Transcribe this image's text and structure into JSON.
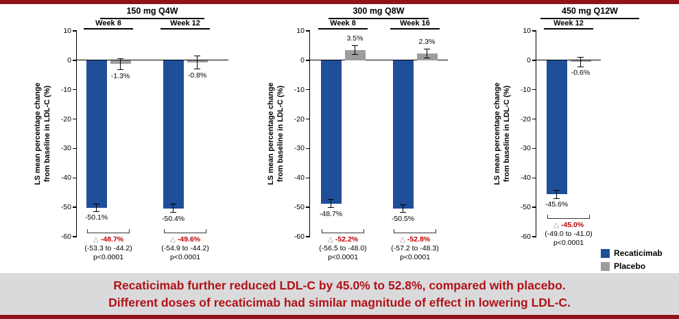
{
  "page": {
    "stripe_color": "#8E1418",
    "banner_bg": "#DADADC",
    "banner_text_color": "#B11217",
    "diff_text_color": "#C00000"
  },
  "banner": {
    "line1": "Recaticimab further reduced LDL-C by 45.0% to 52.8%, compared with placebo.",
    "line2": "Different doses of recaticimab had similar magnitude of effect in lowering LDL-C."
  },
  "legend": {
    "items": [
      {
        "label": "Recaticimab",
        "color": "#1F4E9B"
      },
      {
        "label": "Placebo",
        "color": "#9D9D9D"
      }
    ]
  },
  "chart_data": [
    {
      "type": "bar",
      "title": "150 mg Q4W",
      "ylabel": "LS mean percentage change from baseline in LDL-C (%)",
      "ylabel_lines": [
        "LS mean percentage change",
        "from baseline in LDL-C (%)"
      ],
      "ylim": [
        -60,
        10
      ],
      "yticks": [
        10,
        0,
        -10,
        -20,
        -30,
        -40,
        -50,
        -60
      ],
      "grid": false,
      "groups": [
        {
          "label": "Week 8",
          "bars": [
            {
              "series": "Recaticimab",
              "value": -50.1,
              "err": 1.3,
              "label": "-50.1%"
            },
            {
              "series": "Placebo",
              "value": -1.3,
              "err": 1.9,
              "label": "-1.3%"
            }
          ],
          "difference": {
            "delta": "△",
            "value": "-48.7%",
            "ci": "(-53.3 to -44.2)",
            "p": "p<0.0001"
          }
        },
        {
          "label": "Week 12",
          "bars": [
            {
              "series": "Recaticimab",
              "value": -50.4,
              "err": 1.4,
              "label": "-50.4%"
            },
            {
              "series": "Placebo",
              "value": -0.8,
              "err": 2.2,
              "label": "-0.8%"
            }
          ],
          "difference": {
            "delta": "△",
            "value": "-49.6%",
            "ci": "(-54.9 to -44.2)",
            "p": "p<0.0001"
          }
        }
      ]
    },
    {
      "type": "bar",
      "title": "300 mg Q8W",
      "ylabel": "LS mean percentage change from baseline in LDL-C (%)",
      "ylabel_lines": [
        "LS mean percentage change",
        "from baseline in LDL-C (%)"
      ],
      "ylim": [
        -60,
        10
      ],
      "yticks": [
        10,
        0,
        -10,
        -20,
        -30,
        -40,
        -50,
        -60
      ],
      "grid": false,
      "groups": [
        {
          "label": "Week 8",
          "bars": [
            {
              "series": "Recaticimab",
              "value": -48.7,
              "err": 1.4,
              "label": "-48.7%"
            },
            {
              "series": "Placebo",
              "value": 3.5,
              "err": 1.5,
              "label": "3.5%"
            }
          ],
          "difference": {
            "delta": "△",
            "value": "-52.2%",
            "ci": "(-56.5 to -48.0)",
            "p": "p<0.0001"
          }
        },
        {
          "label": "Week 16",
          "bars": [
            {
              "series": "Recaticimab",
              "value": -50.5,
              "err": 1.3,
              "label": "-50.5%"
            },
            {
              "series": "Placebo",
              "value": 2.3,
              "err": 1.6,
              "label": "2.3%"
            }
          ],
          "difference": {
            "delta": "△",
            "value": "-52.8%",
            "ci": "(-57.2 to -48.3)",
            "p": "p<0.0001"
          }
        }
      ]
    },
    {
      "type": "bar",
      "title": "450 mg Q12W",
      "ylabel": "LS mean percentage change from baseline in LDL-C (%)",
      "ylabel_lines": [
        "LS mean percentage change",
        "from baseline in LDL-C (%)"
      ],
      "ylim": [
        -60,
        10
      ],
      "yticks": [
        10,
        0,
        -10,
        -20,
        -30,
        -40,
        -50,
        -60
      ],
      "grid": false,
      "groups": [
        {
          "label": "Week 12",
          "bars": [
            {
              "series": "Recaticimab",
              "value": -45.6,
              "err": 1.4,
              "label": "-45.6%"
            },
            {
              "series": "Placebo",
              "value": -0.6,
              "err": 1.6,
              "label": "-0.6%"
            }
          ],
          "difference": {
            "delta": "△",
            "value": "-45.0%",
            "ci": "(-49.0 to -41.0)",
            "p": "p<0.0001"
          }
        }
      ]
    }
  ]
}
